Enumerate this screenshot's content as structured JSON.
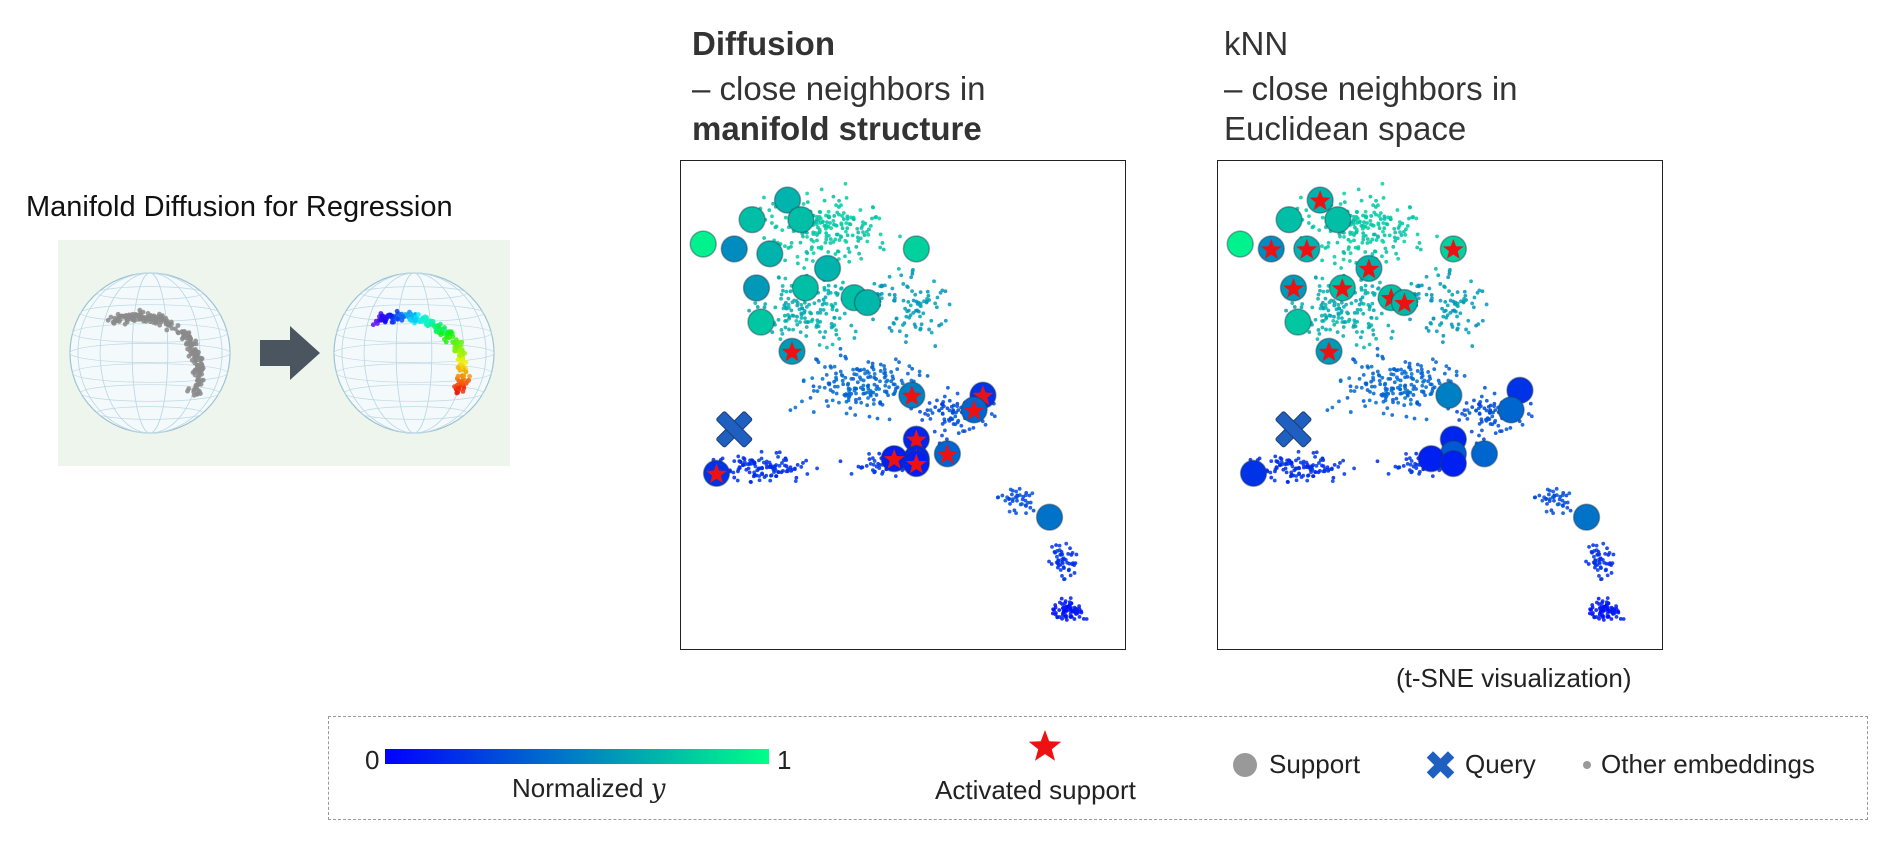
{
  "left": {
    "title": "Manifold Diffusion for Regression",
    "inset_bg": "#eef5ec"
  },
  "panels": [
    {
      "id": "diffusion",
      "title": "Diffusion",
      "line1": "– close neighbors in",
      "line2": "manifold structure"
    },
    {
      "id": "knn",
      "title": "kNN",
      "line1": "– close neighbors in",
      "line2": "Euclidean space"
    }
  ],
  "note": "(t-SNE visualization)",
  "legend": {
    "colorbar_min": "0",
    "colorbar_max": "1",
    "colorbar_label": "Normalized ",
    "colorbar_var": "y",
    "colorbar_from": "#0000ff",
    "colorbar_to": "#00ff88",
    "activated": "Activated support",
    "support": "Support",
    "query": "Query",
    "other": "Other embeddings"
  },
  "colors": {
    "star": "#ee1111",
    "query": "#1f5fbf",
    "support_legend": "#999999",
    "arrow": "#4a5560"
  },
  "chart_data": {
    "type": "scatter",
    "y_range": [
      0,
      1
    ],
    "panels": [
      {
        "name": "Diffusion",
        "query": [
          0.12,
          0.55
        ],
        "supports": [
          {
            "x": 0.05,
            "y": 0.17,
            "v": 0.95,
            "act": false
          },
          {
            "x": 0.16,
            "y": 0.12,
            "v": 0.75,
            "act": false
          },
          {
            "x": 0.24,
            "y": 0.08,
            "v": 0.7,
            "act": false
          },
          {
            "x": 0.27,
            "y": 0.12,
            "v": 0.75,
            "act": false
          },
          {
            "x": 0.12,
            "y": 0.18,
            "v": 0.55,
            "act": false
          },
          {
            "x": 0.2,
            "y": 0.19,
            "v": 0.7,
            "act": false
          },
          {
            "x": 0.53,
            "y": 0.18,
            "v": 0.82,
            "act": false
          },
          {
            "x": 0.33,
            "y": 0.22,
            "v": 0.7,
            "act": false
          },
          {
            "x": 0.17,
            "y": 0.26,
            "v": 0.6,
            "act": false
          },
          {
            "x": 0.28,
            "y": 0.26,
            "v": 0.75,
            "act": false
          },
          {
            "x": 0.39,
            "y": 0.28,
            "v": 0.75,
            "act": false
          },
          {
            "x": 0.42,
            "y": 0.29,
            "v": 0.72,
            "act": false
          },
          {
            "x": 0.18,
            "y": 0.33,
            "v": 0.78,
            "act": false
          },
          {
            "x": 0.25,
            "y": 0.39,
            "v": 0.6,
            "act": true
          },
          {
            "x": 0.52,
            "y": 0.48,
            "v": 0.5,
            "act": true
          },
          {
            "x": 0.68,
            "y": 0.48,
            "v": 0.2,
            "act": true
          },
          {
            "x": 0.66,
            "y": 0.51,
            "v": 0.4,
            "act": true
          },
          {
            "x": 0.53,
            "y": 0.57,
            "v": 0.15,
            "act": true
          },
          {
            "x": 0.53,
            "y": 0.61,
            "v": 0.15,
            "act": true
          },
          {
            "x": 0.48,
            "y": 0.61,
            "v": 0.12,
            "act": true
          },
          {
            "x": 0.53,
            "y": 0.62,
            "v": 0.12,
            "act": true
          },
          {
            "x": 0.6,
            "y": 0.6,
            "v": 0.4,
            "act": true
          },
          {
            "x": 0.08,
            "y": 0.64,
            "v": 0.2,
            "act": true
          },
          {
            "x": 0.83,
            "y": 0.73,
            "v": 0.45,
            "act": false
          }
        ]
      },
      {
        "name": "kNN",
        "query": [
          0.17,
          0.55
        ],
        "supports": [
          {
            "x": 0.05,
            "y": 0.17,
            "v": 0.95,
            "act": false
          },
          {
            "x": 0.23,
            "y": 0.08,
            "v": 0.7,
            "act": true
          },
          {
            "x": 0.16,
            "y": 0.12,
            "v": 0.75,
            "act": false
          },
          {
            "x": 0.27,
            "y": 0.12,
            "v": 0.75,
            "act": false
          },
          {
            "x": 0.12,
            "y": 0.18,
            "v": 0.55,
            "act": true
          },
          {
            "x": 0.2,
            "y": 0.18,
            "v": 0.7,
            "act": true
          },
          {
            "x": 0.53,
            "y": 0.18,
            "v": 0.82,
            "act": true
          },
          {
            "x": 0.34,
            "y": 0.22,
            "v": 0.7,
            "act": true
          },
          {
            "x": 0.17,
            "y": 0.26,
            "v": 0.6,
            "act": true
          },
          {
            "x": 0.28,
            "y": 0.26,
            "v": 0.75,
            "act": true
          },
          {
            "x": 0.39,
            "y": 0.28,
            "v": 0.75,
            "act": true
          },
          {
            "x": 0.42,
            "y": 0.29,
            "v": 0.72,
            "act": true
          },
          {
            "x": 0.18,
            "y": 0.33,
            "v": 0.78,
            "act": false
          },
          {
            "x": 0.25,
            "y": 0.39,
            "v": 0.6,
            "act": true
          },
          {
            "x": 0.52,
            "y": 0.48,
            "v": 0.5,
            "act": false
          },
          {
            "x": 0.68,
            "y": 0.47,
            "v": 0.2,
            "act": false
          },
          {
            "x": 0.66,
            "y": 0.51,
            "v": 0.4,
            "act": false
          },
          {
            "x": 0.53,
            "y": 0.57,
            "v": 0.15,
            "act": false
          },
          {
            "x": 0.53,
            "y": 0.6,
            "v": 0.35,
            "act": false
          },
          {
            "x": 0.48,
            "y": 0.61,
            "v": 0.12,
            "act": false
          },
          {
            "x": 0.53,
            "y": 0.62,
            "v": 0.12,
            "act": false
          },
          {
            "x": 0.6,
            "y": 0.6,
            "v": 0.4,
            "act": false
          },
          {
            "x": 0.08,
            "y": 0.64,
            "v": 0.2,
            "act": false
          },
          {
            "x": 0.83,
            "y": 0.73,
            "v": 0.45,
            "act": false
          }
        ]
      }
    ]
  }
}
